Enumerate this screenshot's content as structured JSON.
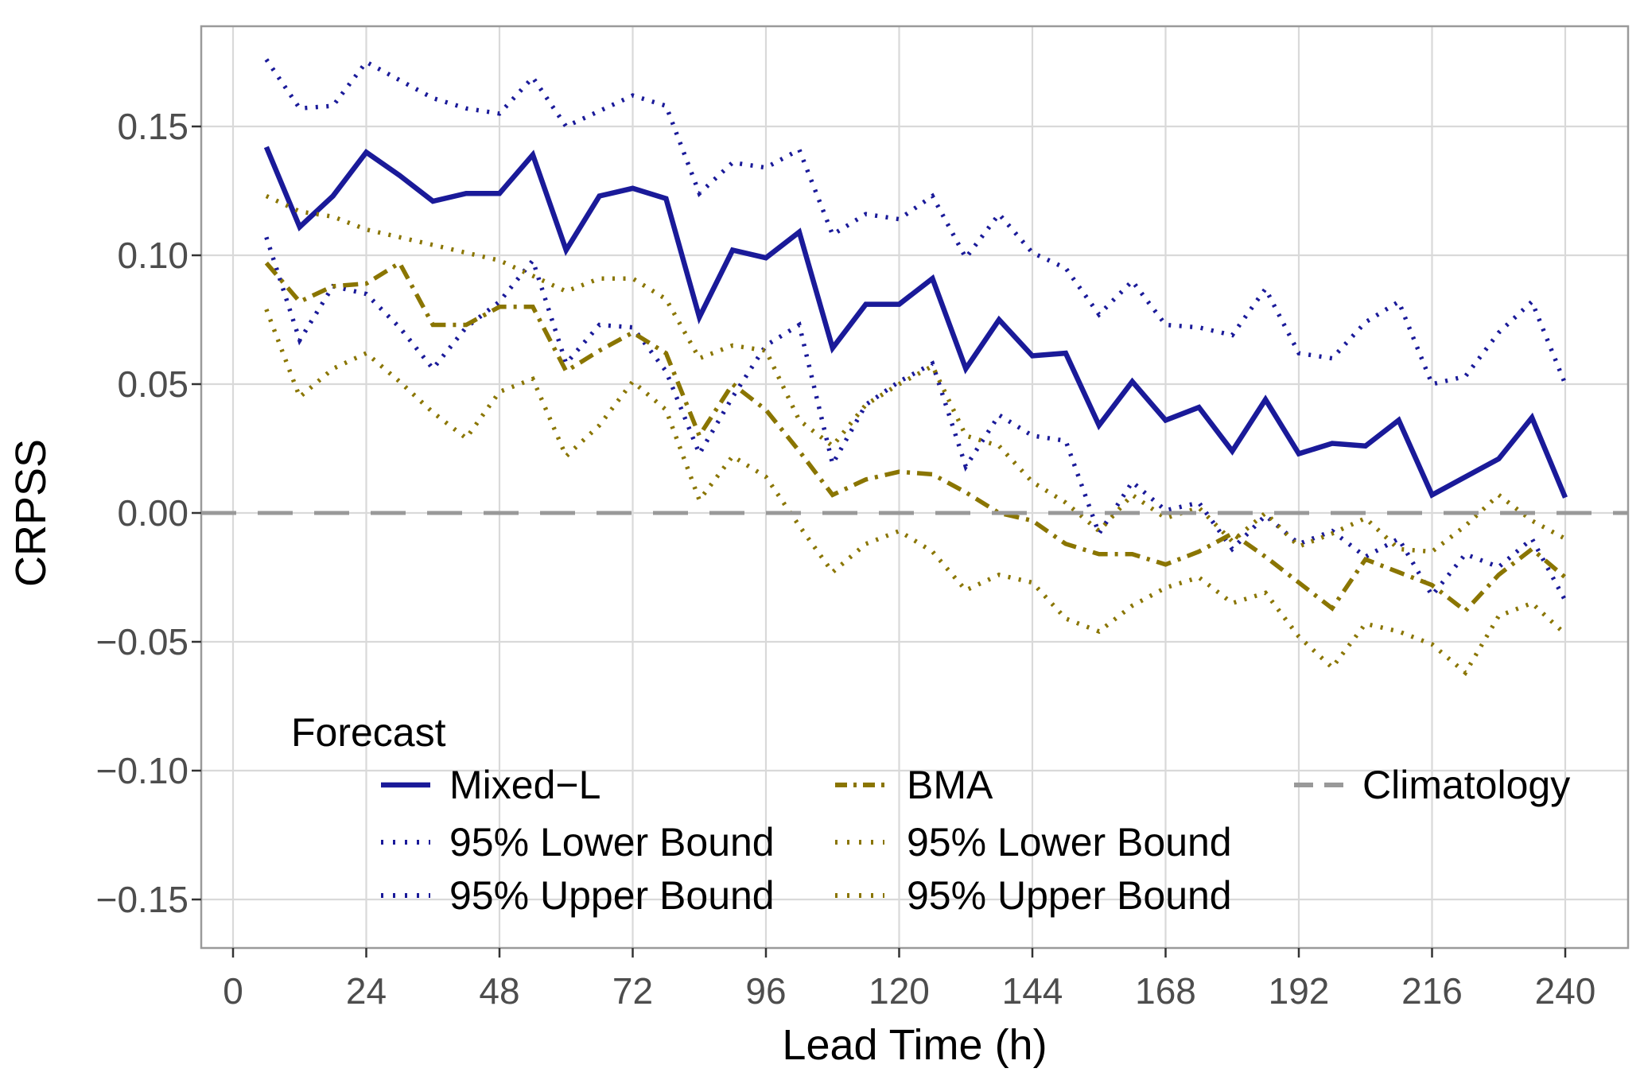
{
  "colors": {
    "navy": "#1A1A99",
    "olive": "#8A7500",
    "climatology": "#999999",
    "grid": "#D9D9D9",
    "panel_border": "#9A9A9A",
    "tick_mark": "#333333",
    "tick_text": "#4D4D4D",
    "axis_text": "#000000"
  },
  "chart_data": {
    "type": "line",
    "title": "",
    "xlabel": "Lead Time (h)",
    "ylabel": "CRPSS",
    "xlim": [
      -6,
      251
    ],
    "ylim": [
      -0.169,
      0.189
    ],
    "grid": "major gridlines only, light gray, white background",
    "x_ticks": [
      0,
      24,
      48,
      72,
      96,
      120,
      144,
      168,
      192,
      216,
      240
    ],
    "y_ticks": [
      0.15,
      0.1,
      0.05,
      0.0,
      -0.05,
      -0.1,
      -0.15
    ],
    "y_tick_labels": [
      "0.15",
      "0.10",
      "0.05",
      "0.00",
      "−0.05",
      "−0.10",
      "−0.15"
    ],
    "x": [
      6,
      12,
      18,
      24,
      30,
      36,
      42,
      48,
      54,
      60,
      66,
      72,
      78,
      84,
      90,
      96,
      102,
      108,
      114,
      120,
      126,
      132,
      138,
      144,
      150,
      156,
      162,
      168,
      174,
      180,
      186,
      192,
      198,
      204,
      210,
      216,
      222,
      228,
      234,
      240
    ],
    "series": [
      {
        "name": "Mixed-L",
        "color_key": "navy",
        "style": "solid",
        "values": [
          0.142,
          0.111,
          0.123,
          0.14,
          0.131,
          0.121,
          0.124,
          0.124,
          0.139,
          0.102,
          0.123,
          0.126,
          0.122,
          0.076,
          0.102,
          0.099,
          0.109,
          0.064,
          0.081,
          0.081,
          0.091,
          0.056,
          0.075,
          0.061,
          0.062,
          0.034,
          0.051,
          0.036,
          0.041,
          0.024,
          0.044,
          0.023,
          0.027,
          0.026,
          0.036,
          0.007,
          0.014,
          0.021,
          0.037,
          0.006
        ]
      },
      {
        "name": "Mixed-L 95% Upper Bound",
        "color_key": "navy",
        "style": "dotted",
        "values": [
          0.176,
          0.157,
          0.158,
          0.175,
          0.168,
          0.161,
          0.157,
          0.155,
          0.169,
          0.15,
          0.156,
          0.162,
          0.158,
          0.124,
          0.136,
          0.134,
          0.141,
          0.108,
          0.116,
          0.114,
          0.123,
          0.099,
          0.116,
          0.101,
          0.095,
          0.077,
          0.09,
          0.073,
          0.072,
          0.069,
          0.087,
          0.062,
          0.06,
          0.074,
          0.082,
          0.05,
          0.053,
          0.07,
          0.082,
          0.05
        ]
      },
      {
        "name": "Mixed-L 95% Lower Bound",
        "color_key": "navy",
        "style": "dotted",
        "values": [
          0.107,
          0.067,
          0.088,
          0.085,
          0.072,
          0.056,
          0.072,
          0.082,
          0.098,
          0.058,
          0.073,
          0.072,
          0.055,
          0.023,
          0.045,
          0.065,
          0.073,
          0.019,
          0.042,
          0.051,
          0.058,
          0.018,
          0.038,
          0.03,
          0.028,
          -0.008,
          0.012,
          0.001,
          0.004,
          -0.014,
          -0.001,
          -0.012,
          -0.007,
          -0.017,
          -0.01,
          -0.032,
          -0.016,
          -0.021,
          -0.01,
          -0.034
        ]
      },
      {
        "name": "BMA",
        "color_key": "olive",
        "style": "dashdot",
        "values": [
          0.097,
          0.082,
          0.088,
          0.089,
          0.097,
          0.073,
          0.073,
          0.08,
          0.08,
          0.055,
          0.063,
          0.07,
          0.062,
          0.03,
          0.05,
          0.04,
          0.024,
          0.007,
          0.013,
          0.016,
          0.015,
          0.008,
          0.0,
          -0.003,
          -0.012,
          -0.016,
          -0.016,
          -0.02,
          -0.015,
          -0.008,
          -0.017,
          -0.027,
          -0.037,
          -0.018,
          -0.023,
          -0.028,
          -0.038,
          -0.024,
          -0.014,
          -0.025
        ]
      },
      {
        "name": "BMA 95% Upper Bound",
        "color_key": "olive",
        "style": "dotted",
        "values": [
          0.123,
          0.117,
          0.115,
          0.11,
          0.107,
          0.104,
          0.101,
          0.098,
          0.092,
          0.086,
          0.091,
          0.091,
          0.083,
          0.06,
          0.065,
          0.063,
          0.036,
          0.026,
          0.042,
          0.05,
          0.057,
          0.03,
          0.026,
          0.012,
          0.004,
          -0.007,
          0.007,
          -0.002,
          0.002,
          -0.011,
          0.0,
          -0.013,
          -0.008,
          -0.002,
          -0.014,
          -0.015,
          -0.005,
          0.007,
          -0.003,
          -0.01
        ]
      },
      {
        "name": "BMA 95% Lower Bound",
        "color_key": "olive",
        "style": "dotted",
        "values": [
          0.079,
          0.045,
          0.056,
          0.062,
          0.051,
          0.039,
          0.029,
          0.047,
          0.052,
          0.022,
          0.034,
          0.051,
          0.04,
          0.005,
          0.022,
          0.014,
          -0.005,
          -0.023,
          -0.012,
          -0.007,
          -0.015,
          -0.03,
          -0.024,
          -0.027,
          -0.041,
          -0.046,
          -0.036,
          -0.029,
          -0.025,
          -0.035,
          -0.031,
          -0.048,
          -0.06,
          -0.043,
          -0.046,
          -0.051,
          -0.062,
          -0.04,
          -0.035,
          -0.047
        ]
      },
      {
        "name": "Climatology",
        "color_key": "climatology",
        "style": "dashed",
        "hline": 0.0
      }
    ],
    "legend": {
      "title": "Forecast",
      "position": "inside plot, bottom left",
      "columns": [
        {
          "items": [
            {
              "label": "Mixed−L",
              "color_key": "navy",
              "style": "solid"
            },
            {
              "label": "95% Lower Bound",
              "color_key": "navy",
              "style": "dotted"
            },
            {
              "label": "95% Upper Bound",
              "color_key": "navy",
              "style": "dotted"
            }
          ]
        },
        {
          "items": [
            {
              "label": "BMA",
              "color_key": "olive",
              "style": "dashdot"
            },
            {
              "label": "95% Lower Bound",
              "color_key": "olive",
              "style": "dotted"
            },
            {
              "label": "95% Upper Bound",
              "color_key": "olive",
              "style": "dotted"
            }
          ]
        },
        {
          "items": [
            {
              "label": "Climatology",
              "color_key": "climatology",
              "style": "dashed"
            }
          ]
        }
      ]
    }
  }
}
